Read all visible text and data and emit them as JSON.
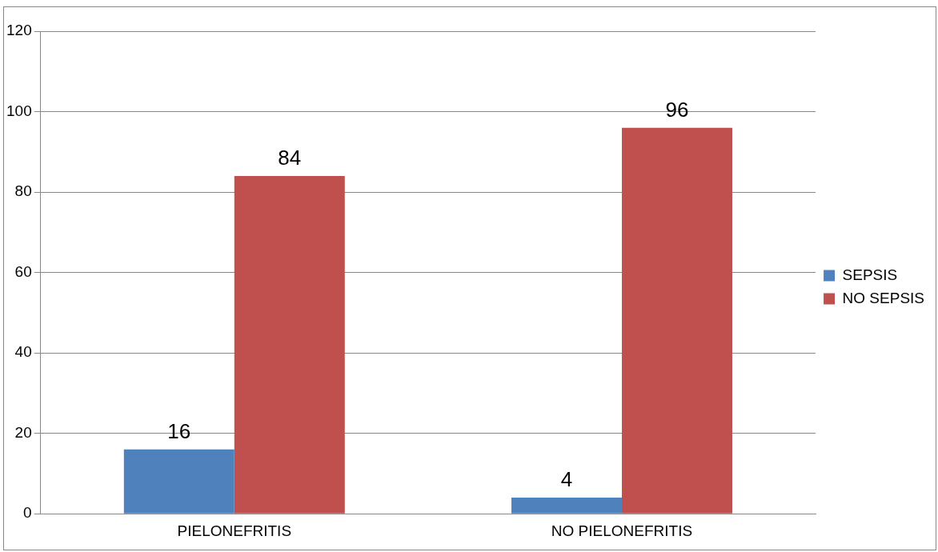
{
  "chart_data": {
    "type": "bar",
    "categories": [
      "PIELONEFRITIS",
      "NO PIELONEFRITIS"
    ],
    "series": [
      {
        "name": "SEPSIS",
        "color": "#4f81bd",
        "values": [
          16,
          4
        ]
      },
      {
        "name": "NO SEPSIS",
        "color": "#c0504d",
        "values": [
          84,
          96
        ]
      }
    ],
    "ylim": [
      0,
      120
    ],
    "yticks": [
      0,
      20,
      40,
      60,
      80,
      100,
      120
    ],
    "grid": "y",
    "legend": "right",
    "data_labels": true
  }
}
